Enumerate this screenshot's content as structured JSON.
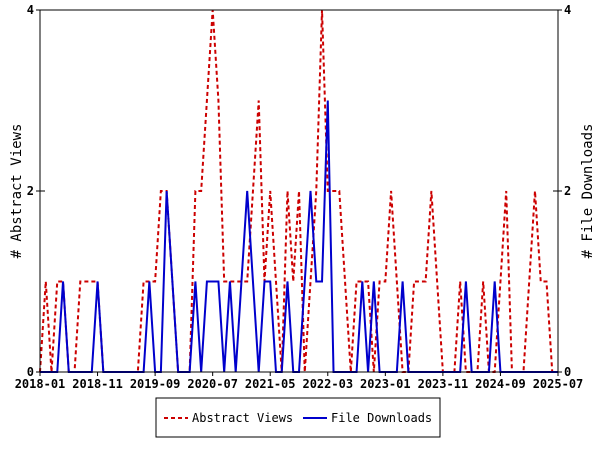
{
  "chart_data": {
    "type": "line",
    "x_labels": [
      "2018-01",
      "2018-11",
      "2019-09",
      "2020-07",
      "2021-05",
      "2022-03",
      "2023-01",
      "2023-11",
      "2024-09",
      "2025-07"
    ],
    "y_left": {
      "label": "# Abstract Views",
      "range": [
        0,
        4
      ],
      "ticks": [
        "0",
        "2",
        "4"
      ]
    },
    "y_right": {
      "label": "# File Downloads",
      "range": [
        0,
        4
      ],
      "ticks": [
        "0",
        "2",
        "4"
      ]
    },
    "x_range": [
      "2018-01",
      "2025-07"
    ],
    "grid": false,
    "legend_position": "bottom",
    "series": [
      {
        "name": "Abstract Views",
        "style": "dashed",
        "color": "#cc0000",
        "points": [
          [
            "2018-01",
            0
          ],
          [
            "2018-02",
            1
          ],
          [
            "2018-03",
            0
          ],
          [
            "2018-04",
            1
          ],
          [
            "2018-05",
            1
          ],
          [
            "2018-06",
            0
          ],
          [
            "2018-07",
            0
          ],
          [
            "2018-08",
            1
          ],
          [
            "2018-09",
            1
          ],
          [
            "2018-10",
            1
          ],
          [
            "2018-11",
            1
          ],
          [
            "2018-12",
            0
          ],
          [
            "2019-01",
            0
          ],
          [
            "2019-02",
            0
          ],
          [
            "2019-03",
            0
          ],
          [
            "2019-04",
            0
          ],
          [
            "2019-05",
            0
          ],
          [
            "2019-06",
            0
          ],
          [
            "2019-07",
            1
          ],
          [
            "2019-08",
            1
          ],
          [
            "2019-09",
            1
          ],
          [
            "2019-10",
            2
          ],
          [
            "2019-11",
            2
          ],
          [
            "2019-12",
            1
          ],
          [
            "2020-01",
            0
          ],
          [
            "2020-02",
            0
          ],
          [
            "2020-03",
            0
          ],
          [
            "2020-04",
            2
          ],
          [
            "2020-05",
            2
          ],
          [
            "2020-06",
            3
          ],
          [
            "2020-07",
            4
          ],
          [
            "2020-08",
            3
          ],
          [
            "2020-09",
            1
          ],
          [
            "2020-10",
            1
          ],
          [
            "2020-11",
            1
          ],
          [
            "2020-12",
            1
          ],
          [
            "2021-01",
            1
          ],
          [
            "2021-02",
            2
          ],
          [
            "2021-03",
            3
          ],
          [
            "2021-04",
            1
          ],
          [
            "2021-05",
            2
          ],
          [
            "2021-06",
            1
          ],
          [
            "2021-07",
            0
          ],
          [
            "2021-08",
            2
          ],
          [
            "2021-09",
            1
          ],
          [
            "2021-10",
            2
          ],
          [
            "2021-11",
            0
          ],
          [
            "2021-12",
            1
          ],
          [
            "2022-01",
            2
          ],
          [
            "2022-02",
            4
          ],
          [
            "2022-03",
            2
          ],
          [
            "2022-04",
            2
          ],
          [
            "2022-05",
            2
          ],
          [
            "2022-06",
            1
          ],
          [
            "2022-07",
            0
          ],
          [
            "2022-08",
            1
          ],
          [
            "2022-09",
            1
          ],
          [
            "2022-10",
            1
          ],
          [
            "2022-11",
            0
          ],
          [
            "2022-12",
            1
          ],
          [
            "2023-01",
            1
          ],
          [
            "2023-02",
            2
          ],
          [
            "2023-03",
            1
          ],
          [
            "2023-04",
            0
          ],
          [
            "2023-05",
            0
          ],
          [
            "2023-06",
            1
          ],
          [
            "2023-07",
            1
          ],
          [
            "2023-08",
            1
          ],
          [
            "2023-09",
            2
          ],
          [
            "2023-10",
            1
          ],
          [
            "2023-11",
            0
          ],
          [
            "2023-12",
            0
          ],
          [
            "2024-01",
            0
          ],
          [
            "2024-02",
            1
          ],
          [
            "2024-03",
            0
          ],
          [
            "2024-04",
            0
          ],
          [
            "2024-05",
            0
          ],
          [
            "2024-06",
            1
          ],
          [
            "2024-07",
            0
          ],
          [
            "2024-08",
            0
          ],
          [
            "2024-09",
            1
          ],
          [
            "2024-10",
            2
          ],
          [
            "2024-11",
            0
          ],
          [
            "2024-12",
            0
          ],
          [
            "2025-01",
            0
          ],
          [
            "2025-02",
            1
          ],
          [
            "2025-03",
            2
          ],
          [
            "2025-04",
            1
          ],
          [
            "2025-05",
            1
          ],
          [
            "2025-06",
            0
          ],
          [
            "2025-07",
            0
          ]
        ]
      },
      {
        "name": "File Downloads",
        "style": "solid",
        "color": "#0000cc",
        "points": [
          [
            "2018-01",
            0
          ],
          [
            "2018-02",
            0
          ],
          [
            "2018-03",
            0
          ],
          [
            "2018-04",
            0
          ],
          [
            "2018-05",
            1
          ],
          [
            "2018-06",
            0
          ],
          [
            "2018-07",
            0
          ],
          [
            "2018-08",
            0
          ],
          [
            "2018-09",
            0
          ],
          [
            "2018-10",
            0
          ],
          [
            "2018-11",
            1
          ],
          [
            "2018-12",
            0
          ],
          [
            "2019-01",
            0
          ],
          [
            "2019-02",
            0
          ],
          [
            "2019-03",
            0
          ],
          [
            "2019-04",
            0
          ],
          [
            "2019-05",
            0
          ],
          [
            "2019-06",
            0
          ],
          [
            "2019-07",
            0
          ],
          [
            "2019-08",
            1
          ],
          [
            "2019-09",
            0
          ],
          [
            "2019-10",
            0
          ],
          [
            "2019-11",
            2
          ],
          [
            "2019-12",
            1
          ],
          [
            "2020-01",
            0
          ],
          [
            "2020-02",
            0
          ],
          [
            "2020-03",
            0
          ],
          [
            "2020-04",
            1
          ],
          [
            "2020-05",
            0
          ],
          [
            "2020-06",
            1
          ],
          [
            "2020-07",
            1
          ],
          [
            "2020-08",
            1
          ],
          [
            "2020-09",
            0
          ],
          [
            "2020-10",
            1
          ],
          [
            "2020-11",
            0
          ],
          [
            "2020-12",
            1
          ],
          [
            "2021-01",
            2
          ],
          [
            "2021-02",
            1
          ],
          [
            "2021-03",
            0
          ],
          [
            "2021-04",
            1
          ],
          [
            "2021-05",
            1
          ],
          [
            "2021-06",
            0
          ],
          [
            "2021-07",
            0
          ],
          [
            "2021-08",
            1
          ],
          [
            "2021-09",
            0
          ],
          [
            "2021-10",
            0
          ],
          [
            "2021-11",
            1
          ],
          [
            "2021-12",
            2
          ],
          [
            "2022-01",
            1
          ],
          [
            "2022-02",
            1
          ],
          [
            "2022-03",
            3
          ],
          [
            "2022-04",
            0
          ],
          [
            "2022-05",
            0
          ],
          [
            "2022-06",
            0
          ],
          [
            "2022-07",
            0
          ],
          [
            "2022-08",
            0
          ],
          [
            "2022-09",
            1
          ],
          [
            "2022-10",
            0
          ],
          [
            "2022-11",
            1
          ],
          [
            "2022-12",
            0
          ],
          [
            "2023-01",
            0
          ],
          [
            "2023-02",
            0
          ],
          [
            "2023-03",
            0
          ],
          [
            "2023-04",
            1
          ],
          [
            "2023-05",
            0
          ],
          [
            "2023-06",
            0
          ],
          [
            "2023-07",
            0
          ],
          [
            "2023-08",
            0
          ],
          [
            "2023-09",
            0
          ],
          [
            "2023-10",
            0
          ],
          [
            "2023-11",
            0
          ],
          [
            "2023-12",
            0
          ],
          [
            "2024-01",
            0
          ],
          [
            "2024-02",
            0
          ],
          [
            "2024-03",
            1
          ],
          [
            "2024-04",
            0
          ],
          [
            "2024-05",
            0
          ],
          [
            "2024-06",
            0
          ],
          [
            "2024-07",
            0
          ],
          [
            "2024-08",
            1
          ],
          [
            "2024-09",
            0
          ],
          [
            "2024-10",
            0
          ],
          [
            "2024-11",
            0
          ],
          [
            "2024-12",
            0
          ],
          [
            "2025-01",
            0
          ],
          [
            "2025-02",
            0
          ],
          [
            "2025-03",
            0
          ],
          [
            "2025-04",
            0
          ],
          [
            "2025-05",
            0
          ],
          [
            "2025-06",
            0
          ],
          [
            "2025-07",
            0
          ]
        ]
      }
    ]
  },
  "legend": {
    "items": [
      {
        "label": "Abstract Views",
        "color": "#cc0000",
        "style": "dashed"
      },
      {
        "label": "File Downloads",
        "color": "#0000cc",
        "style": "solid"
      }
    ]
  }
}
